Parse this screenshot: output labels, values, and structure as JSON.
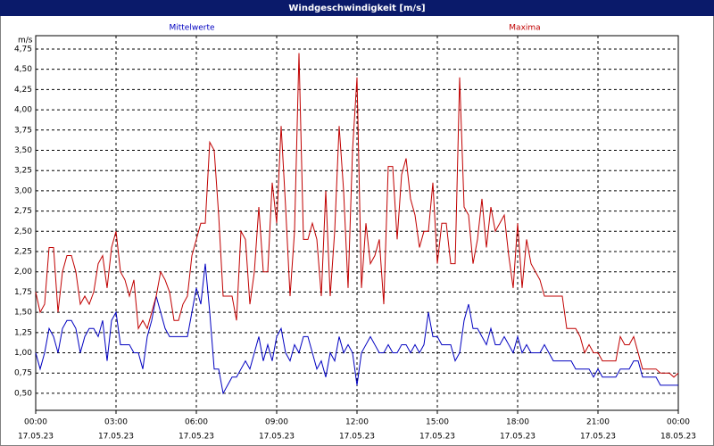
{
  "chart_data": {
    "type": "line",
    "title": "Windgeschwindigkeit [m/s]",
    "y_unit_label": "m/s",
    "x": [
      0,
      10,
      20,
      30,
      40,
      50,
      60,
      70,
      80,
      90,
      100,
      110,
      120,
      130,
      140,
      150,
      160,
      170,
      180,
      190,
      200,
      210,
      220,
      230,
      240,
      250,
      260,
      270,
      280,
      290,
      300,
      310,
      320,
      330,
      340,
      350,
      360,
      370,
      380,
      390,
      400,
      410,
      420,
      430,
      440,
      450,
      460,
      470,
      480,
      490,
      500,
      510,
      520,
      530,
      540,
      550,
      560,
      570,
      580,
      590,
      600,
      610,
      620,
      630,
      640,
      650,
      660,
      670,
      680,
      690,
      700,
      710,
      720,
      730,
      740,
      750,
      760,
      770,
      780,
      790,
      800,
      810,
      820,
      830,
      840,
      850,
      860,
      870,
      880,
      890,
      900,
      910,
      920,
      930,
      940,
      950,
      960,
      970,
      980,
      990,
      1000,
      1010,
      1020,
      1030,
      1040,
      1050,
      1060,
      1070,
      1080,
      1090,
      1100,
      1110,
      1120,
      1130,
      1140,
      1150,
      1160,
      1170,
      1180,
      1190,
      1200,
      1210,
      1220,
      1230,
      1240,
      1250,
      1260,
      1270,
      1280,
      1290,
      1300,
      1310,
      1320,
      1330,
      1340,
      1350,
      1360,
      1370,
      1380,
      1390,
      1400,
      1410,
      1420,
      1430,
      1440
    ],
    "series": [
      {
        "name": "Mittelwerte",
        "color": "#0000c0",
        "values": [
          1.0,
          0.8,
          1.0,
          1.3,
          1.2,
          1.0,
          1.3,
          1.4,
          1.4,
          1.3,
          1.0,
          1.2,
          1.3,
          1.3,
          1.2,
          1.4,
          0.9,
          1.4,
          1.5,
          1.1,
          1.1,
          1.1,
          1.0,
          1.0,
          0.8,
          1.2,
          1.4,
          1.7,
          1.5,
          1.3,
          1.2,
          1.2,
          1.2,
          1.2,
          1.2,
          1.5,
          1.8,
          1.6,
          2.1,
          1.5,
          0.8,
          0.8,
          0.5,
          0.6,
          0.7,
          0.7,
          0.8,
          0.9,
          0.8,
          1.0,
          1.2,
          0.9,
          1.1,
          0.9,
          1.2,
          1.3,
          1.0,
          0.9,
          1.1,
          1.0,
          1.2,
          1.2,
          1.0,
          0.8,
          0.9,
          0.7,
          1.0,
          0.9,
          1.2,
          1.0,
          1.1,
          1.0,
          0.6,
          1.0,
          1.1,
          1.2,
          1.1,
          1.0,
          1.0,
          1.1,
          1.0,
          1.0,
          1.1,
          1.1,
          1.0,
          1.1,
          1.0,
          1.1,
          1.5,
          1.2,
          1.2,
          1.1,
          1.1,
          1.1,
          0.9,
          1.0,
          1.4,
          1.6,
          1.3,
          1.3,
          1.2,
          1.1,
          1.3,
          1.1,
          1.1,
          1.2,
          1.1,
          1.0,
          1.2,
          1.0,
          1.1,
          1.0,
          1.0,
          1.0,
          1.1,
          1.0,
          0.9,
          0.9,
          0.9,
          0.9,
          0.9,
          0.8,
          0.8,
          0.8,
          0.8,
          0.7,
          0.8,
          0.7,
          0.7,
          0.7,
          0.7,
          0.8,
          0.8,
          0.8,
          0.9,
          0.9,
          0.7,
          0.7,
          0.7,
          0.7,
          0.6,
          0.6,
          0.6,
          0.6,
          0.6
        ]
      },
      {
        "name": "Maxima",
        "color": "#c00000",
        "values": [
          1.75,
          1.5,
          1.6,
          2.3,
          2.3,
          1.5,
          2.0,
          2.2,
          2.2,
          2.0,
          1.6,
          1.7,
          1.6,
          1.75,
          2.1,
          2.2,
          1.8,
          2.3,
          2.5,
          2.0,
          1.9,
          1.7,
          1.9,
          1.3,
          1.4,
          1.3,
          1.5,
          1.7,
          2.0,
          1.9,
          1.75,
          1.4,
          1.4,
          1.6,
          1.7,
          2.2,
          2.4,
          2.6,
          2.6,
          3.6,
          3.5,
          2.7,
          1.7,
          1.7,
          1.7,
          1.4,
          2.5,
          2.4,
          1.6,
          2.0,
          2.8,
          2.0,
          2.0,
          3.1,
          2.6,
          3.8,
          2.8,
          1.7,
          2.5,
          4.7,
          2.4,
          2.4,
          2.6,
          2.4,
          1.7,
          3.0,
          1.7,
          2.5,
          3.8,
          3.0,
          1.8,
          3.5,
          4.4,
          1.8,
          2.6,
          2.1,
          2.2,
          2.4,
          1.6,
          3.3,
          3.3,
          2.4,
          3.2,
          3.4,
          2.9,
          2.7,
          2.3,
          2.5,
          2.5,
          3.1,
          2.1,
          2.6,
          2.6,
          2.1,
          2.1,
          4.4,
          2.8,
          2.7,
          2.1,
          2.4,
          2.9,
          2.3,
          2.8,
          2.5,
          2.6,
          2.7,
          2.2,
          1.8,
          2.6,
          1.8,
          2.4,
          2.1,
          2.0,
          1.9,
          1.7,
          1.7,
          1.7,
          1.7,
          1.7,
          1.3,
          1.3,
          1.3,
          1.2,
          1.0,
          1.1,
          1.0,
          1.0,
          0.9,
          0.9,
          0.9,
          0.9,
          1.2,
          1.1,
          1.1,
          1.2,
          1.0,
          0.8,
          0.8,
          0.8,
          0.8,
          0.75,
          0.75,
          0.75,
          0.7,
          0.75
        ]
      }
    ],
    "xlim": [
      0,
      1440
    ],
    "xticks": [
      {
        "value": 0,
        "label": "00:00"
      },
      {
        "value": 180,
        "label": "03:00"
      },
      {
        "value": 360,
        "label": "06:00"
      },
      {
        "value": 540,
        "label": "09:00"
      },
      {
        "value": 720,
        "label": "12:00"
      },
      {
        "value": 900,
        "label": "15:00"
      },
      {
        "value": 1080,
        "label": "18:00"
      },
      {
        "value": 1260,
        "label": "21:00"
      },
      {
        "value": 1440,
        "label": "00:00"
      }
    ],
    "xtick_dates": [
      "17.05.23",
      "17.05.23",
      "17.05.23",
      "17.05.23",
      "17.05.23",
      "17.05.23",
      "17.05.23",
      "17.05.23",
      "18.05.23"
    ],
    "ylim": [
      0.29,
      4.915
    ],
    "yticks": [
      {
        "value": 0.5,
        "label": "0,50"
      },
      {
        "value": 0.75,
        "label": "0,75"
      },
      {
        "value": 1.0,
        "label": "1,00"
      },
      {
        "value": 1.25,
        "label": "1,25"
      },
      {
        "value": 1.5,
        "label": "1,50"
      },
      {
        "value": 1.75,
        "label": "1,75"
      },
      {
        "value": 2.0,
        "label": "2,00"
      },
      {
        "value": 2.25,
        "label": "2,25"
      },
      {
        "value": 2.5,
        "label": "2,50"
      },
      {
        "value": 2.75,
        "label": "2,75"
      },
      {
        "value": 3.0,
        "label": "3,00"
      },
      {
        "value": 3.25,
        "label": "3,25"
      },
      {
        "value": 3.5,
        "label": "3,50"
      },
      {
        "value": 3.75,
        "label": "3,75"
      },
      {
        "value": 4.0,
        "label": "4,00"
      },
      {
        "value": 4.25,
        "label": "4,25"
      },
      {
        "value": 4.5,
        "label": "4,50"
      },
      {
        "value": 4.75,
        "label": "4,75"
      }
    ],
    "grid": true
  }
}
